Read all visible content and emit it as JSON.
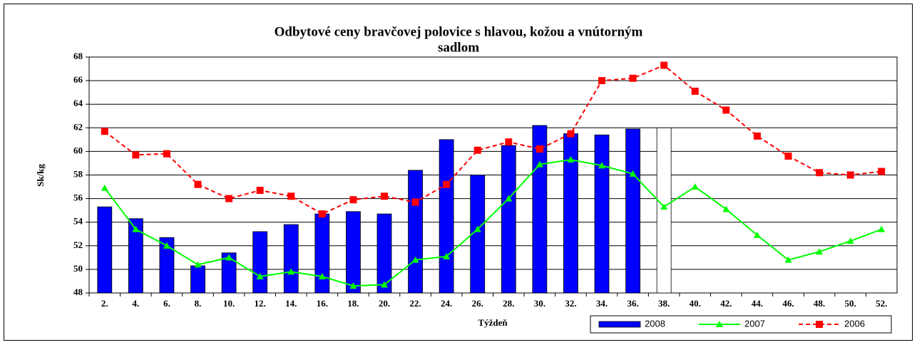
{
  "chart_data": {
    "type": "bar_line",
    "title_lines": [
      "Odbytové ceny bravčovej polovice s hlavou, kožou a vnútorným",
      "sadlom"
    ],
    "xlabel": "Týždeň",
    "ylabel": "Sk/kg",
    "categories": [
      "2.",
      "4.",
      "6.",
      "8.",
      "10.",
      "12.",
      "14.",
      "16.",
      "18.",
      "20.",
      "22.",
      "24.",
      "26.",
      "28.",
      "30.",
      "32.",
      "34.",
      "36.",
      "38.",
      "40.",
      "42.",
      "44.",
      "46.",
      "48.",
      "50.",
      "52."
    ],
    "series": [
      {
        "name": "2008",
        "kind": "bar",
        "color": "#0000ff",
        "values": [
          55.3,
          54.3,
          52.7,
          50.3,
          51.4,
          53.2,
          53.8,
          54.7,
          54.9,
          54.7,
          58.4,
          61.0,
          58.0,
          60.5,
          62.2,
          61.5,
          61.4,
          61.9,
          62.0,
          null,
          null,
          null,
          null,
          null,
          null,
          null
        ],
        "colors": [
          "#0000ff",
          "#0000ff",
          "#0000ff",
          "#0000ff",
          "#0000ff",
          "#0000ff",
          "#0000ff",
          "#0000ff",
          "#0000ff",
          "#0000ff",
          "#0000ff",
          "#0000ff",
          "#0000ff",
          "#0000ff",
          "#0000ff",
          "#0000ff",
          "#0000ff",
          "#0000ff",
          "#ffffff",
          null,
          null,
          null,
          null,
          null,
          null,
          null
        ]
      },
      {
        "name": "2007",
        "kind": "line",
        "color": "#00ff00",
        "marker": "triangle",
        "dash": false,
        "values": [
          56.9,
          53.4,
          52.0,
          50.4,
          51.0,
          49.4,
          49.8,
          49.4,
          48.6,
          48.7,
          50.8,
          51.1,
          53.4,
          56.0,
          58.9,
          59.3,
          58.8,
          58.1,
          55.3,
          57.0,
          55.1,
          52.9,
          50.8,
          51.5,
          52.4,
          53.4
        ]
      },
      {
        "name": "2006",
        "kind": "line",
        "color": "#ff0000",
        "marker": "square",
        "dash": true,
        "values": [
          61.7,
          59.7,
          59.8,
          57.2,
          56.0,
          56.7,
          56.2,
          54.7,
          55.9,
          56.2,
          55.7,
          57.2,
          60.1,
          60.8,
          60.2,
          61.5,
          66.0,
          66.2,
          67.3,
          65.1,
          63.5,
          61.3,
          59.6,
          58.2,
          58.0,
          58.3
        ]
      }
    ],
    "ylim": [
      48,
      68
    ],
    "yticks": [
      48,
      50,
      52,
      54,
      56,
      58,
      60,
      62,
      64,
      66,
      68
    ],
    "grid": true,
    "legend": "bottom-right"
  }
}
